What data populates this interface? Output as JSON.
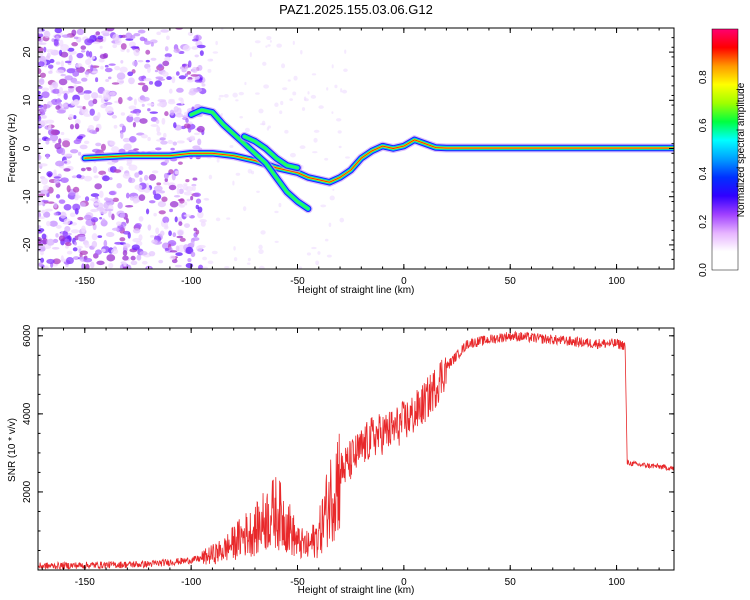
{
  "title": "PAZ1.2025.155.03.06.G12",
  "colors": {
    "snr_line": "#e8282a",
    "cb_stops": [
      "#ffffff",
      "#ffffff",
      "#e6b3ff",
      "#a040ff",
      "#3000ff",
      "#0030ff",
      "#00a0ff",
      "#00ffff",
      "#00ff40",
      "#a0ff00",
      "#ffff00",
      "#ff9900",
      "#ff0000",
      "#ff0070"
    ]
  },
  "chart_data": [
    {
      "type": "heatmap",
      "xlabel": "Height of straight line (km)",
      "ylabel": "Frequency (Hz)",
      "xlim": [
        -172,
        127
      ],
      "ylim": [
        -25,
        25
      ],
      "xticks": [
        -150,
        -100,
        -50,
        0,
        50,
        100
      ],
      "yticks": [
        -20,
        -10,
        0,
        10,
        20
      ],
      "colorbar": {
        "label": "Normalized spectral amplitude",
        "range": [
          0,
          1
        ],
        "ticks": [
          "0.0",
          "0.2",
          "0.4",
          "0.6",
          "0.8"
        ]
      },
      "ridges": [
        {
          "x": [
            -150,
            -130,
            -110,
            -100,
            -90,
            -80,
            -70,
            -60,
            -50,
            -45,
            -40,
            -35,
            -30,
            -25,
            -20,
            -15,
            -10,
            -5,
            0,
            5,
            10,
            15,
            20,
            60,
            100,
            127
          ],
          "y": [
            -2,
            -1.5,
            -1.5,
            -1,
            -1,
            -1.5,
            -2.5,
            -4,
            -5,
            -6,
            -6.5,
            -7,
            -6,
            -4.5,
            -2,
            -0.5,
            0.5,
            0,
            0.5,
            1.8,
            1,
            0.2,
            0.1,
            0.1,
            0.1,
            0.1
          ]
        },
        {
          "x": [
            -100,
            -95,
            -90,
            -85,
            -80,
            -75,
            -70,
            -65,
            -60,
            -55,
            -50,
            -45
          ],
          "y": [
            7,
            8,
            7.5,
            5,
            3,
            1,
            -1,
            -3,
            -6,
            -9,
            -11,
            -12.5
          ]
        },
        {
          "x": [
            -75,
            -70,
            -65,
            -60,
            -55,
            -50
          ],
          "y": [
            2.5,
            1.5,
            0,
            -2,
            -3.5,
            -4
          ]
        }
      ]
    },
    {
      "type": "line",
      "xlabel": "Height of straight line (km)",
      "ylabel": "SNR (10 * v/v)",
      "xlim": [
        -172,
        127
      ],
      "ylim": [
        0,
        6200
      ],
      "xticks": [
        -150,
        -100,
        -50,
        0,
        50,
        100
      ],
      "yticks": [
        2000,
        4000,
        6000
      ],
      "series": [
        {
          "x": [
            -172,
            -150,
            -120,
            -100,
            -95,
            -90,
            -85,
            -80,
            -75,
            -70,
            -65,
            -60,
            -55,
            -50,
            -45,
            -40,
            -35,
            -30,
            -25,
            -20,
            -15,
            -10,
            -5,
            0,
            5,
            10,
            15,
            20,
            25,
            30,
            40,
            50,
            60,
            70,
            80,
            90,
            100,
            104,
            105,
            110,
            120,
            127
          ],
          "y": [
            100,
            120,
            150,
            250,
            300,
            400,
            500,
            700,
            900,
            1000,
            1300,
            1500,
            1200,
            700,
            600,
            900,
            1800,
            2500,
            2800,
            3100,
            3400,
            3500,
            3600,
            3800,
            4000,
            4300,
            4700,
            5200,
            5500,
            5800,
            5900,
            6000,
            5950,
            5900,
            5850,
            5800,
            5800,
            5750,
            2750,
            2700,
            2650,
            2600
          ]
        }
      ]
    }
  ]
}
